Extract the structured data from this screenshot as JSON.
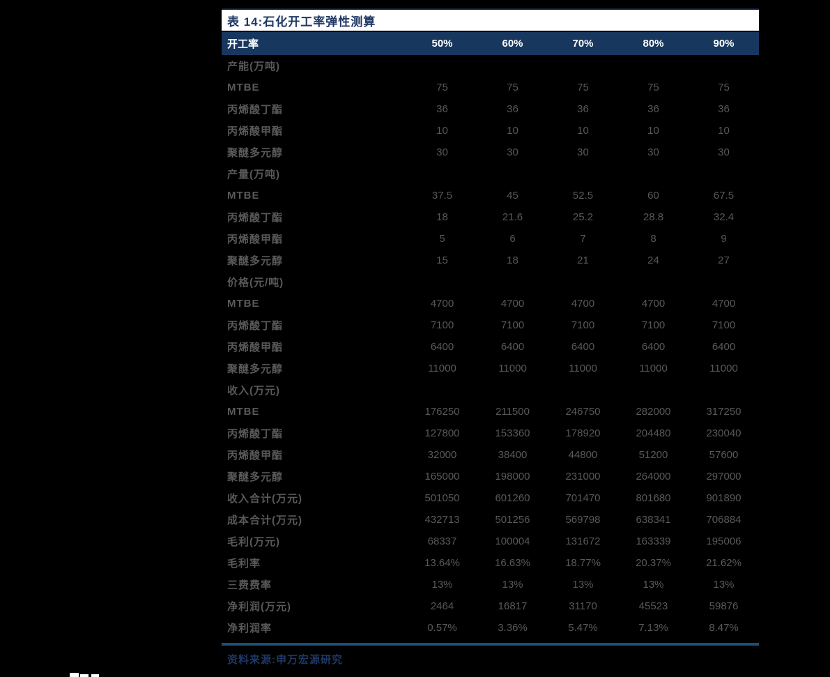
{
  "page": {
    "background": "#000000"
  },
  "colors": {
    "title_bg": "#FFFFFF",
    "title_text": "#1F3864",
    "header_bg": "#17375E",
    "header_text": "#FFFFFF",
    "body_text": "#595959",
    "rule": "#1F4E79",
    "source_text": "#1F3864"
  },
  "table": {
    "title": "表 14:石化开工率弹性测算",
    "header": {
      "label": "开工率",
      "columns": [
        "50%",
        "60%",
        "70%",
        "80%",
        "90%"
      ]
    },
    "rows": [
      {
        "type": "section",
        "label": "产能(万吨)",
        "values": [
          "",
          "",
          "",
          "",
          ""
        ]
      },
      {
        "type": "data",
        "label": "MTBE",
        "values": [
          "75",
          "75",
          "75",
          "75",
          "75"
        ]
      },
      {
        "type": "data",
        "label": "丙烯酸丁酯",
        "values": [
          "36",
          "36",
          "36",
          "36",
          "36"
        ]
      },
      {
        "type": "data",
        "label": "丙烯酸甲酯",
        "values": [
          "10",
          "10",
          "10",
          "10",
          "10"
        ]
      },
      {
        "type": "data",
        "label": "聚醚多元醇",
        "values": [
          "30",
          "30",
          "30",
          "30",
          "30"
        ]
      },
      {
        "type": "section",
        "label": "产量(万吨)",
        "values": [
          "",
          "",
          "",
          "",
          ""
        ]
      },
      {
        "type": "data",
        "label": "MTBE",
        "values": [
          "37.5",
          "45",
          "52.5",
          "60",
          "67.5"
        ]
      },
      {
        "type": "data",
        "label": "丙烯酸丁酯",
        "values": [
          "18",
          "21.6",
          "25.2",
          "28.8",
          "32.4"
        ]
      },
      {
        "type": "data",
        "label": "丙烯酸甲酯",
        "values": [
          "5",
          "6",
          "7",
          "8",
          "9"
        ]
      },
      {
        "type": "data",
        "label": "聚醚多元醇",
        "values": [
          "15",
          "18",
          "21",
          "24",
          "27"
        ]
      },
      {
        "type": "section",
        "label": "价格(元/吨)",
        "values": [
          "",
          "",
          "",
          "",
          ""
        ]
      },
      {
        "type": "data",
        "label": "MTBE",
        "values": [
          "4700",
          "4700",
          "4700",
          "4700",
          "4700"
        ]
      },
      {
        "type": "data",
        "label": "丙烯酸丁酯",
        "values": [
          "7100",
          "7100",
          "7100",
          "7100",
          "7100"
        ]
      },
      {
        "type": "data",
        "label": "丙烯酸甲酯",
        "values": [
          "6400",
          "6400",
          "6400",
          "6400",
          "6400"
        ]
      },
      {
        "type": "data",
        "label": "聚醚多元醇",
        "values": [
          "11000",
          "11000",
          "11000",
          "11000",
          "11000"
        ]
      },
      {
        "type": "section",
        "label": "收入(万元)",
        "values": [
          "",
          "",
          "",
          "",
          ""
        ]
      },
      {
        "type": "data",
        "label": "MTBE",
        "values": [
          "176250",
          "211500",
          "246750",
          "282000",
          "317250"
        ]
      },
      {
        "type": "data",
        "label": "丙烯酸丁酯",
        "values": [
          "127800",
          "153360",
          "178920",
          "204480",
          "230040"
        ]
      },
      {
        "type": "data",
        "label": "丙烯酸甲酯",
        "values": [
          "32000",
          "38400",
          "44800",
          "51200",
          "57600"
        ]
      },
      {
        "type": "data",
        "label": "聚醚多元醇",
        "values": [
          "165000",
          "198000",
          "231000",
          "264000",
          "297000"
        ]
      },
      {
        "type": "data",
        "label": "收入合计(万元)",
        "values": [
          "501050",
          "601260",
          "701470",
          "801680",
          "901890"
        ]
      },
      {
        "type": "data",
        "label": "成本合计(万元)",
        "values": [
          "432713",
          "501256",
          "569798",
          "638341",
          "706884"
        ]
      },
      {
        "type": "data",
        "label": "毛利(万元)",
        "values": [
          "68337",
          "100004",
          "131672",
          "163339",
          "195006"
        ]
      },
      {
        "type": "data",
        "label": "毛利率",
        "values": [
          "13.64%",
          "16.63%",
          "18.77%",
          "20.37%",
          "21.62%"
        ]
      },
      {
        "type": "data",
        "label": "三费费率",
        "values": [
          "13%",
          "13%",
          "13%",
          "13%",
          "13%"
        ]
      },
      {
        "type": "data",
        "label": "净利润(万元)",
        "values": [
          "2464",
          "16817",
          "31170",
          "45523",
          "59876"
        ]
      },
      {
        "type": "data",
        "label": "净利润率",
        "values": [
          "0.57%",
          "3.36%",
          "5.47%",
          "7.13%",
          "8.47%"
        ]
      }
    ],
    "source": "资料来源:申万宏源研究"
  }
}
